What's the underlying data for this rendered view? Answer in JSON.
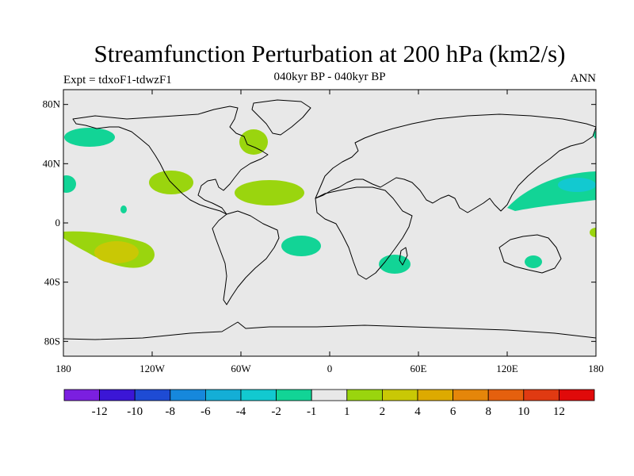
{
  "title": "Streamfunction Perturbation at 200 hPa (km2/s)",
  "subtitle": "040kyr BP - 040kyr BP",
  "experiment": "Expt = tdxoF1-tdwzF1",
  "season": "ANN",
  "axes": {
    "lat_ticks": [
      {
        "label": "80N",
        "value": 80
      },
      {
        "label": "40N",
        "value": 40
      },
      {
        "label": "0",
        "value": 0
      },
      {
        "label": "40S",
        "value": -40
      },
      {
        "label": "80S",
        "value": -80
      }
    ],
    "lon_ticks": [
      {
        "label": "180",
        "value": -180
      },
      {
        "label": "120W",
        "value": -120
      },
      {
        "label": "60W",
        "value": -60
      },
      {
        "label": "0",
        "value": 0
      },
      {
        "label": "60E",
        "value": 60
      },
      {
        "label": "120E",
        "value": 120
      },
      {
        "label": "180",
        "value": 180
      }
    ],
    "lon_range": [
      -180,
      180
    ],
    "lat_range": [
      -90,
      90
    ]
  },
  "colorbar": {
    "colors": [
      "#7b1fe0",
      "#3b16d6",
      "#1e4bd4",
      "#1688dc",
      "#14aed6",
      "#12c9d0",
      "#12d496",
      "#e8e8e8",
      "#9ad50e",
      "#c9c805",
      "#ddaa00",
      "#e5860a",
      "#e5600e",
      "#e03a12",
      "#e00a0a"
    ],
    "labels": [
      "-12",
      "-10",
      "-8",
      "-6",
      "-4",
      "-2",
      "-1",
      "1",
      "2",
      "4",
      "6",
      "8",
      "10",
      "12"
    ]
  },
  "chart_data": {
    "type": "heatmap",
    "title": "Streamfunction Perturbation at 200 hPa (km2/s)",
    "background_value_range": [
      -1,
      1
    ],
    "anomalies": [
      {
        "name": "north-pacific-negative",
        "lon": -170,
        "lat": 57,
        "bin": "-2..-1",
        "color": "#12d496"
      },
      {
        "name": "central-pacific-edge-negative",
        "lon": -180,
        "lat": 26,
        "bin": "-2..-1",
        "color": "#12d496"
      },
      {
        "name": "hudson-bay-positive",
        "lon": -60,
        "lat": 58,
        "bin": "1..2",
        "color": "#9ad50e"
      },
      {
        "name": "mexico-positive",
        "lon": -108,
        "lat": 27,
        "bin": "1..2",
        "color": "#9ad50e"
      },
      {
        "name": "north-atlantic-positive",
        "lon": -37,
        "lat": 21,
        "bin": "1..2",
        "color": "#9ad50e"
      },
      {
        "name": "south-pacific-positive",
        "lon": -150,
        "lat": -18,
        "bin": "1..2",
        "color": "#9ad50e"
      },
      {
        "name": "south-pacific-core",
        "lon": -140,
        "lat": -22,
        "bin": "2..4",
        "color": "#c9c805"
      },
      {
        "name": "south-atlantic-negative",
        "lon": -20,
        "lat": -15,
        "bin": "-2..-1",
        "color": "#12d496"
      },
      {
        "name": "madagascar-negative",
        "lon": 45,
        "lat": -27,
        "bin": "-2..-1",
        "color": "#12d496"
      },
      {
        "name": "west-pacific-negative",
        "lon": 150,
        "lat": 20,
        "bin": "-2..-1",
        "color": "#12d496"
      },
      {
        "name": "west-pacific-core",
        "lon": 165,
        "lat": 25,
        "bin": "-4..-2",
        "color": "#12c9d0"
      },
      {
        "name": "australia-negative",
        "lon": 137,
        "lat": -25,
        "bin": "-2..-1",
        "color": "#12d496"
      },
      {
        "name": "south-atlantic-edge-positive",
        "lon": 180,
        "lat": -6,
        "bin": "1..2",
        "color": "#9ad50e"
      }
    ]
  }
}
